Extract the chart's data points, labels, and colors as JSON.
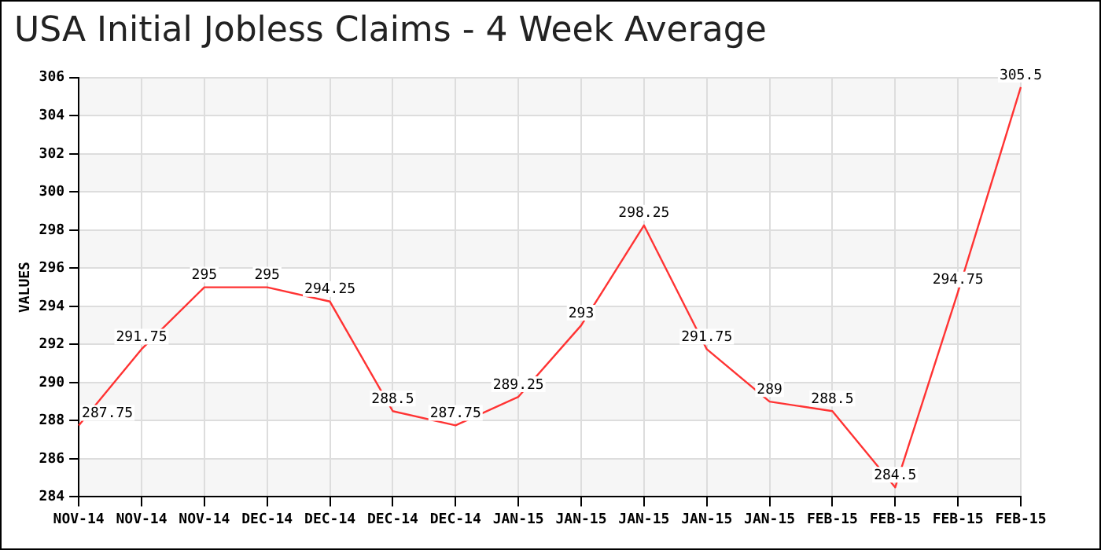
{
  "chart_data": {
    "type": "line",
    "title": "USA Initial Jobless Claims - 4 Week Average",
    "ylabel": "VALUES",
    "categories": [
      "NOV-14",
      "NOV-14",
      "NOV-14",
      "DEC-14",
      "DEC-14",
      "DEC-14",
      "DEC-14",
      "JAN-15",
      "JAN-15",
      "JAN-15",
      "JAN-15",
      "JAN-15",
      "FEB-15",
      "FEB-15",
      "FEB-15",
      "FEB-15"
    ],
    "series": [
      {
        "color": "#ff3333",
        "values": [
          287.75,
          291.75,
          295,
          295,
          294.25,
          288.5,
          287.75,
          289.25,
          293,
          298.25,
          291.75,
          289,
          288.5,
          284.5,
          294.75,
          305.5
        ]
      }
    ],
    "ylim": [
      284,
      306
    ],
    "yticks": [
      284,
      286,
      288,
      290,
      292,
      294,
      296,
      298,
      300,
      302,
      304,
      306
    ],
    "grid": true,
    "legend": false,
    "marker": "none",
    "line_style": "solid",
    "data_labels": true
  }
}
